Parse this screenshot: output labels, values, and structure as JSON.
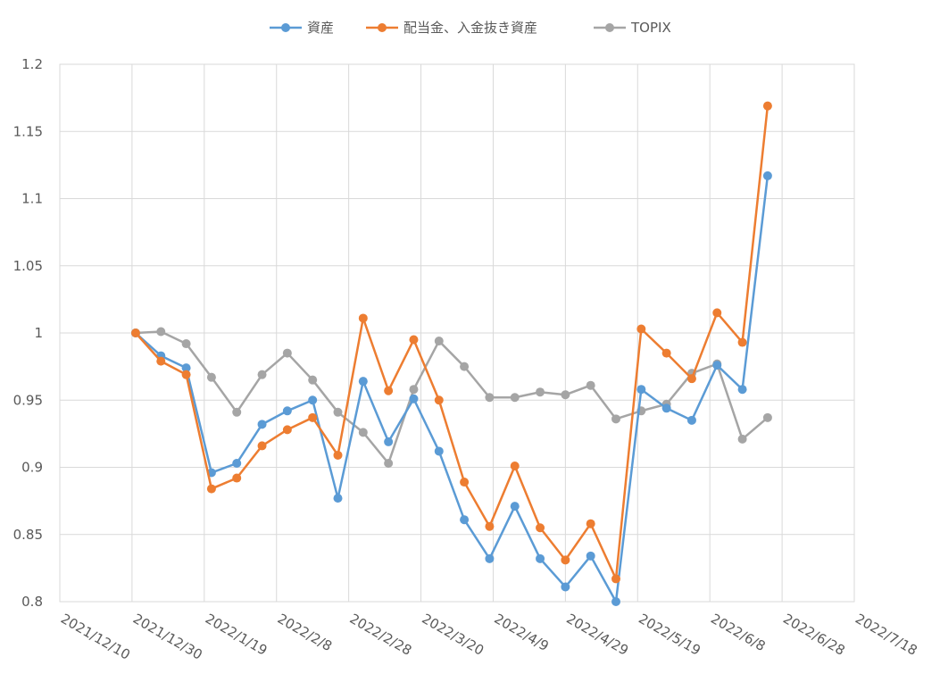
{
  "chart_data": {
    "type": "line",
    "title": "",
    "xlabel": "",
    "ylabel": "",
    "ylim": [
      0.8,
      1.2
    ],
    "yticks": [
      "0.8",
      "0.85",
      "0.9",
      "0.95",
      "1",
      "1.05",
      "1.1",
      "1.15",
      "1.2"
    ],
    "xlim": [
      "2021-12-10",
      "2022-07-18"
    ],
    "xticks": [
      "2021/12/10",
      "2021/12/30",
      "2022/1/19",
      "2022/2/8",
      "2022/2/28",
      "2022/3/20",
      "2022/4/9",
      "2022/4/29",
      "2022/5/19",
      "2022/6/8",
      "2022/6/28",
      "2022/7/18"
    ],
    "grid": true,
    "legend_position": "top",
    "x": [
      "2021-12-31",
      "2022-01-07",
      "2022-01-14",
      "2022-01-21",
      "2022-01-28",
      "2022-02-04",
      "2022-02-11",
      "2022-02-18",
      "2022-02-25",
      "2022-03-04",
      "2022-03-11",
      "2022-03-18",
      "2022-03-25",
      "2022-04-01",
      "2022-04-08",
      "2022-04-15",
      "2022-04-22",
      "2022-04-29",
      "2022-05-06",
      "2022-05-13",
      "2022-05-20",
      "2022-05-27",
      "2022-06-03",
      "2022-06-10",
      "2022-06-17",
      "2022-06-24"
    ],
    "series": [
      {
        "name": "資産",
        "color": "#5B9BD5",
        "values": [
          1.0,
          0.983,
          0.974,
          0.896,
          0.903,
          0.932,
          0.942,
          0.95,
          0.877,
          0.964,
          0.919,
          0.951,
          0.912,
          0.861,
          0.832,
          0.871,
          0.832,
          0.811,
          0.834,
          0.8,
          0.958,
          0.944,
          0.935,
          0.976,
          0.958,
          1.117
        ]
      },
      {
        "name": "配当金、入金抜き資産",
        "color": "#ED7D31",
        "values": [
          1.0,
          0.979,
          0.969,
          0.884,
          0.892,
          0.916,
          0.928,
          0.937,
          0.909,
          1.011,
          0.957,
          0.995,
          0.95,
          0.889,
          0.856,
          0.901,
          0.855,
          0.831,
          0.858,
          0.817,
          1.003,
          0.985,
          0.966,
          1.015,
          0.993,
          1.169
        ]
      },
      {
        "name": "TOPIX",
        "color": "#A5A5A5",
        "values": [
          1.0,
          1.001,
          0.992,
          0.967,
          0.941,
          0.969,
          0.985,
          0.965,
          0.941,
          0.926,
          0.903,
          0.958,
          0.994,
          0.975,
          0.952,
          0.952,
          0.956,
          0.954,
          0.961,
          0.936,
          0.942,
          0.947,
          0.97,
          0.977,
          0.921,
          0.937
        ]
      }
    ]
  },
  "colors": {
    "grid": "#D9D9D9",
    "axis_text": "#595959",
    "background": "#FFFFFF"
  }
}
